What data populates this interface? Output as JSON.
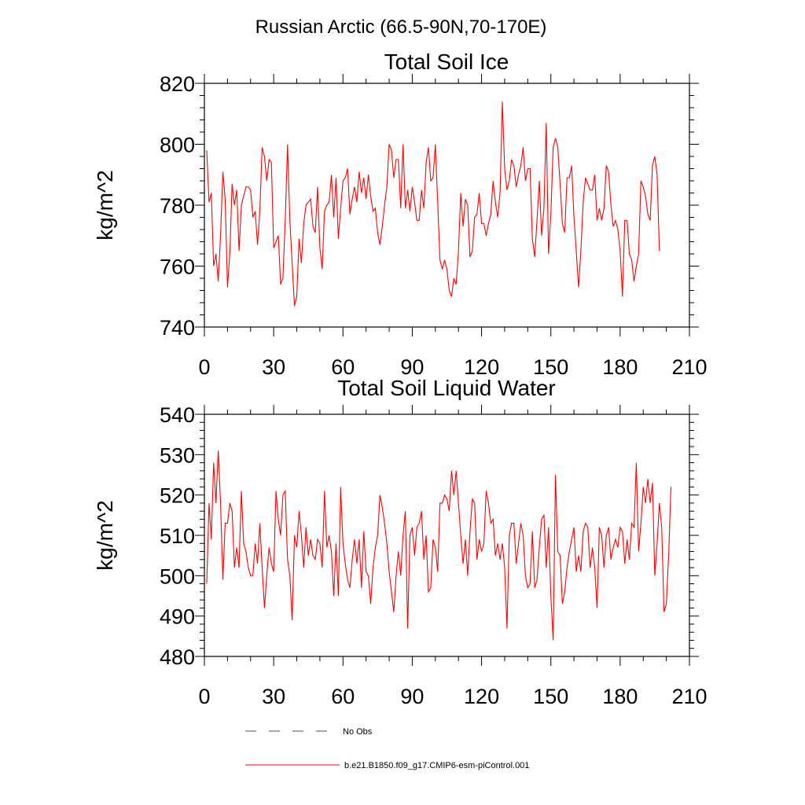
{
  "title": "Russian Arctic (66.5-90N,70-170E)",
  "chart_data": [
    {
      "type": "line",
      "title": "Total Soil Ice",
      "ylabel": "kg/m^2",
      "xlabel": "",
      "xlim": [
        0,
        210
      ],
      "ylim": [
        740,
        820
      ],
      "xticks": [
        0,
        30,
        60,
        90,
        120,
        150,
        180,
        210
      ],
      "yticks": [
        740,
        760,
        780,
        800,
        820
      ],
      "series": [
        {
          "name": "b.e21.B1850.f09_g17.CMIP6-esm-piControl.001",
          "color": "#ff0000",
          "x_start": 1,
          "values": [
            798,
            781,
            784,
            760,
            764,
            755,
            770,
            791,
            782,
            753,
            764,
            787,
            780,
            785,
            765,
            780,
            783,
            786,
            786,
            785,
            776,
            778,
            767,
            778,
            799,
            796,
            788,
            795,
            794,
            766,
            768,
            770,
            754,
            756,
            775,
            800,
            775,
            761,
            747,
            750,
            769,
            761,
            774,
            780,
            781,
            782,
            773,
            771,
            786,
            766,
            759,
            778,
            780,
            781,
            790,
            776,
            789,
            769,
            779,
            788,
            789,
            792,
            777,
            782,
            786,
            781,
            791,
            784,
            789,
            782,
            790,
            783,
            778,
            779,
            771,
            767,
            773,
            780,
            786,
            800,
            798,
            789,
            795,
            795,
            779,
            800,
            779,
            785,
            778,
            786,
            781,
            775,
            775,
            785,
            779,
            794,
            799,
            788,
            789,
            800,
            781,
            762,
            759,
            762,
            759,
            752,
            750,
            756,
            754,
            765,
            784,
            773,
            782,
            780,
            763,
            765,
            776,
            777,
            784,
            774,
            774,
            770,
            774,
            777,
            788,
            781,
            776,
            784,
            814,
            792,
            785,
            788,
            795,
            793,
            786,
            790,
            793,
            799,
            788,
            792,
            792,
            769,
            763,
            775,
            788,
            770,
            779,
            807,
            764,
            777,
            799,
            802,
            799,
            787,
            774,
            771,
            789,
            789,
            793,
            776,
            765,
            753,
            765,
            781,
            789,
            787,
            785,
            785,
            790,
            775,
            779,
            775,
            779,
            793,
            791,
            780,
            773,
            775,
            772,
            765,
            750,
            775,
            775,
            764,
            762,
            755,
            760,
            764,
            788,
            786,
            783,
            777,
            775,
            793,
            796,
            790,
            765
          ]
        }
      ]
    },
    {
      "type": "line",
      "title": "Total Soil Liquid Water",
      "ylabel": "kg/m^2",
      "xlabel": "",
      "xlim": [
        0,
        210
      ],
      "ylim": [
        480,
        540
      ],
      "xticks": [
        0,
        30,
        60,
        90,
        120,
        150,
        180,
        210
      ],
      "yticks": [
        480,
        490,
        500,
        510,
        520,
        530,
        540
      ],
      "series": [
        {
          "name": "b.e21.B1850.f09_g17.CMIP6-esm-piControl.001",
          "color": "#ff0000",
          "x_start": 1,
          "values": [
            498,
            518,
            509,
            528,
            518,
            531,
            518,
            499,
            513,
            513,
            518,
            516,
            502,
            507,
            502,
            521,
            508,
            506,
            502,
            500,
            500,
            508,
            503,
            513,
            502,
            492,
            500,
            507,
            503,
            501,
            521,
            514,
            510,
            520,
            521,
            504,
            500,
            489,
            510,
            507,
            516,
            510,
            502,
            512,
            505,
            509,
            505,
            504,
            509,
            508,
            502,
            521,
            507,
            510,
            506,
            495,
            508,
            495,
            522,
            508,
            503,
            499,
            497,
            504,
            509,
            503,
            509,
            497,
            511,
            501,
            500,
            493,
            502,
            507,
            510,
            520,
            517,
            513,
            508,
            501,
            496,
            491,
            500,
            506,
            500,
            510,
            516,
            487,
            510,
            512,
            505,
            512,
            513,
            516,
            504,
            510,
            496,
            497,
            509,
            507,
            501,
            518,
            518,
            520,
            519,
            516,
            526,
            520,
            526,
            518,
            510,
            503,
            509,
            500,
            511,
            519,
            518,
            504,
            509,
            506,
            508,
            521,
            518,
            513,
            514,
            505,
            508,
            504,
            508,
            502,
            487,
            510,
            513,
            513,
            503,
            508,
            513,
            510,
            500,
            497,
            498,
            511,
            497,
            499,
            507,
            514,
            515,
            502,
            512,
            495,
            484,
            525,
            506,
            505,
            493,
            496,
            502,
            506,
            509,
            512,
            501,
            505,
            501,
            511,
            513,
            512,
            502,
            507,
            502,
            492,
            512,
            510,
            502,
            510,
            512,
            504,
            507,
            509,
            507,
            512,
            511,
            503,
            509,
            504,
            513,
            512,
            528,
            506,
            513,
            522,
            518,
            524,
            518,
            523,
            500,
            508,
            518,
            512,
            491,
            493,
            505,
            522
          ]
        }
      ]
    }
  ],
  "legend": {
    "items": [
      {
        "label": "No Obs",
        "style": "dashed",
        "color": "#4a4a7a"
      },
      {
        "label": "b.e21.B1850.f09_g17.CMIP6-esm-piControl.001",
        "style": "solid",
        "color": "#ff0000"
      }
    ]
  }
}
